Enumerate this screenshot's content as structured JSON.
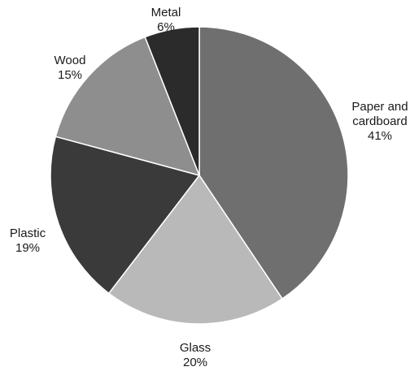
{
  "chart_data": {
    "type": "pie",
    "title": "",
    "start_angle_deg": 0,
    "direction": "clockwise",
    "slices": [
      {
        "name_lines": [
          "Paper and",
          "cardboard"
        ],
        "value": 41,
        "value_label": "41%",
        "color": "#6f6f6f"
      },
      {
        "name_lines": [
          "Glass"
        ],
        "value": 20,
        "value_label": "20%",
        "color": "#b9b9b9"
      },
      {
        "name_lines": [
          "Plastic"
        ],
        "value": 19,
        "value_label": "19%",
        "color": "#3a3a3a"
      },
      {
        "name_lines": [
          "Wood"
        ],
        "value": 15,
        "value_label": "15%",
        "color": "#8e8e8e"
      },
      {
        "name_lines": [
          "Metal"
        ],
        "value": 6,
        "value_label": "6%",
        "color": "#2b2b2b"
      }
    ]
  }
}
